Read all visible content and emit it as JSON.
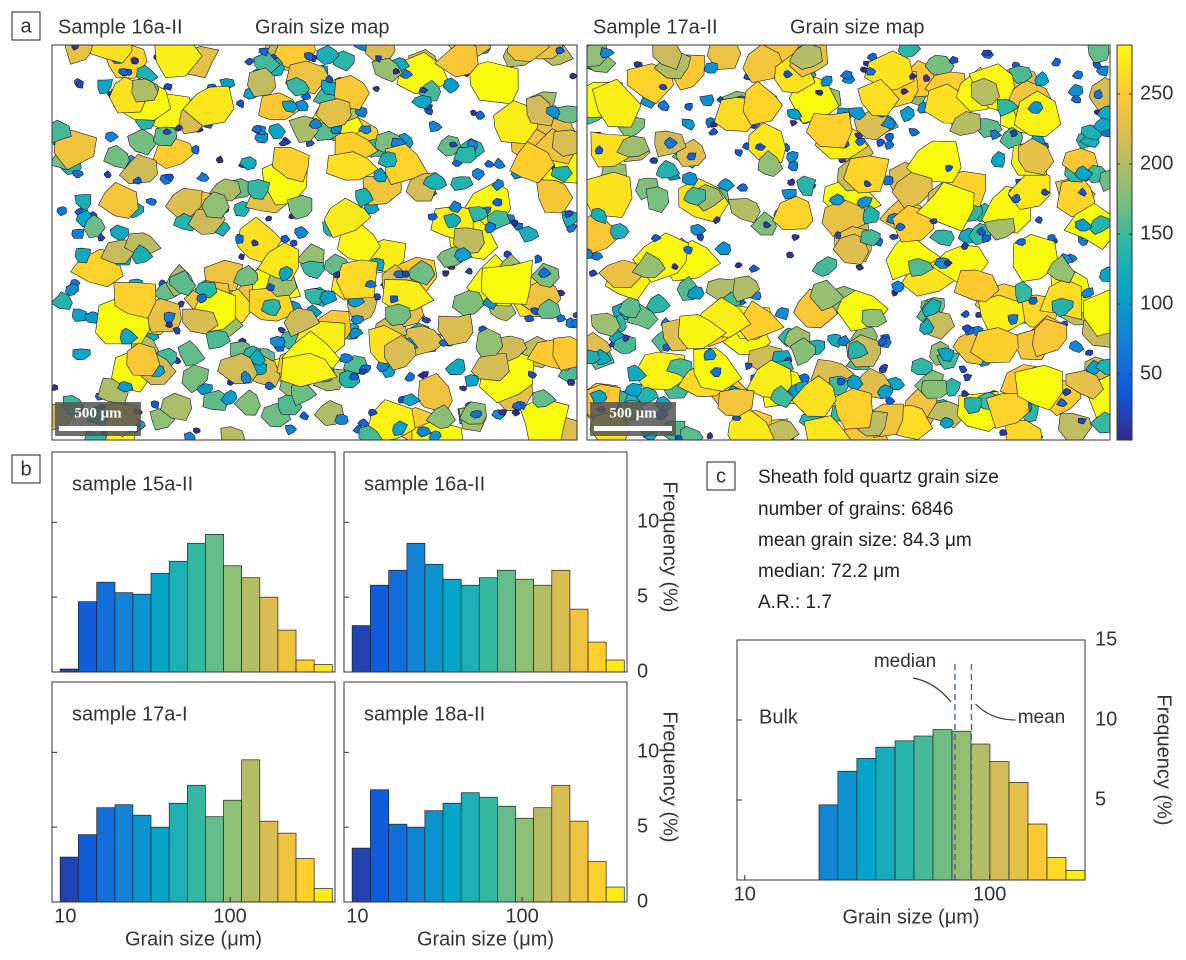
{
  "chart_data": [
    {
      "type": "map",
      "panel": "a",
      "title": "Sample 16a-II",
      "subtitle": "Grain size map",
      "scale_bar": "500 μm"
    },
    {
      "type": "map",
      "title": "Sample 17a-II",
      "subtitle": "Grain size map",
      "scale_bar": "500 μm",
      "colorbar": {
        "lim": [
          3,
          285
        ],
        "ticks": [
          50,
          100,
          150,
          200,
          250
        ],
        "colors": [
          "#352a87",
          "#0f5cdd",
          "#1481d6",
          "#06a4ca",
          "#2eb7a4",
          "#87bf77",
          "#d1bb59",
          "#fec832",
          "#f9fb0e"
        ]
      }
    },
    {
      "type": "histogram",
      "panel": "b",
      "title": "sample 15a-II",
      "xscale": "log",
      "bins": [
        9.3,
        12.0,
        15.5,
        20.0,
        25.7,
        33.1,
        42.7,
        55.0,
        70.8,
        91.2,
        117.5,
        151.4,
        195.0,
        251.2,
        323.6,
        416.9
      ],
      "values": [
        0.2,
        4.7,
        6.0,
        5.3,
        5.2,
        6.6,
        7.4,
        8.6,
        9.2,
        7.1,
        6.3,
        5.0,
        2.8,
        0.8,
        0.5
      ],
      "xlim": [
        8.3,
        433
      ],
      "ylim": [
        0,
        14.7
      ],
      "yticks": [
        5,
        10
      ]
    },
    {
      "type": "histogram",
      "title": "sample 16a-II",
      "xscale": "log",
      "bins": [
        9.3,
        12.0,
        15.5,
        20.0,
        25.7,
        33.1,
        42.7,
        55.0,
        70.8,
        91.2,
        117.5,
        151.4,
        195.0,
        251.2,
        323.6,
        416.9
      ],
      "values": [
        3.1,
        5.8,
        6.8,
        8.6,
        7.2,
        6.2,
        5.8,
        6.3,
        6.8,
        6.2,
        5.8,
        6.8,
        4.2,
        2.0,
        0.8
      ],
      "xlim": [
        8.3,
        433
      ],
      "ylim": [
        0,
        14.7
      ],
      "yticks": [
        0,
        5,
        10
      ],
      "ylabel": "Frequency (%)"
    },
    {
      "type": "histogram",
      "title": "sample 17a-I",
      "xscale": "log",
      "bins": [
        9.3,
        12.0,
        15.5,
        20.0,
        25.7,
        33.1,
        42.7,
        55.0,
        70.8,
        91.2,
        117.5,
        151.4,
        195.0,
        251.2,
        323.6,
        416.9
      ],
      "values": [
        3.0,
        4.5,
        6.3,
        6.5,
        5.8,
        5.0,
        6.6,
        7.8,
        5.7,
        6.8,
        9.5,
        5.4,
        4.6,
        2.9,
        0.9
      ],
      "xlim": [
        8.3,
        433
      ],
      "xticks": [
        10,
        100
      ],
      "ylim": [
        0,
        14.7
      ],
      "yticks": [
        5,
        10
      ],
      "xlabel": "Grain size (μm)"
    },
    {
      "type": "histogram",
      "title": "sample 18a-II",
      "xscale": "log",
      "bins": [
        9.3,
        12.0,
        15.5,
        20.0,
        25.7,
        33.1,
        42.7,
        55.0,
        70.8,
        91.2,
        117.5,
        151.4,
        195.0,
        251.2,
        323.6,
        416.9
      ],
      "values": [
        3.6,
        7.5,
        5.2,
        5.0,
        6.1,
        6.6,
        7.3,
        7.0,
        6.4,
        5.6,
        6.3,
        7.8,
        5.4,
        2.7,
        1.0
      ],
      "xlim": [
        8.3,
        433
      ],
      "xticks": [
        10,
        100
      ],
      "ylim": [
        0,
        14.7
      ],
      "yticks": [
        0,
        5,
        10
      ],
      "xlabel": "Grain size (μm)",
      "ylabel": "Frequency (%)"
    },
    {
      "type": "histogram",
      "panel": "c",
      "title": "Sheath fold quartz grain size",
      "xscale": "log",
      "text_lines": [
        "number of grains: 6846",
        "mean grain size: 84.3 μm",
        "median: 72.2 μm",
        "A.R.: 1.7"
      ],
      "annotation": "Bulk",
      "bins": [
        20.1,
        24.0,
        28.7,
        34.3,
        41.1,
        49.1,
        58.7,
        70.2,
        83.9,
        100.3,
        120.0,
        143.4,
        171.5,
        205.0,
        245.1
      ],
      "values": [
        4.7,
        6.8,
        7.6,
        8.3,
        8.7,
        9.0,
        9.4,
        9.3,
        8.5,
        7.4,
        6.1,
        3.5,
        1.4,
        0.6
      ],
      "xlim": [
        9.3,
        245.1
      ],
      "xticks": [
        10,
        100
      ],
      "ylim": [
        0,
        15
      ],
      "yticks": [
        5,
        10,
        15
      ],
      "xlabel": "Grain size (μm)",
      "ylabel": "Frequency (%)",
      "reference_lines": [
        {
          "label": "median",
          "value": 72.2
        },
        {
          "label": "mean",
          "value": 84.3
        }
      ]
    }
  ]
}
